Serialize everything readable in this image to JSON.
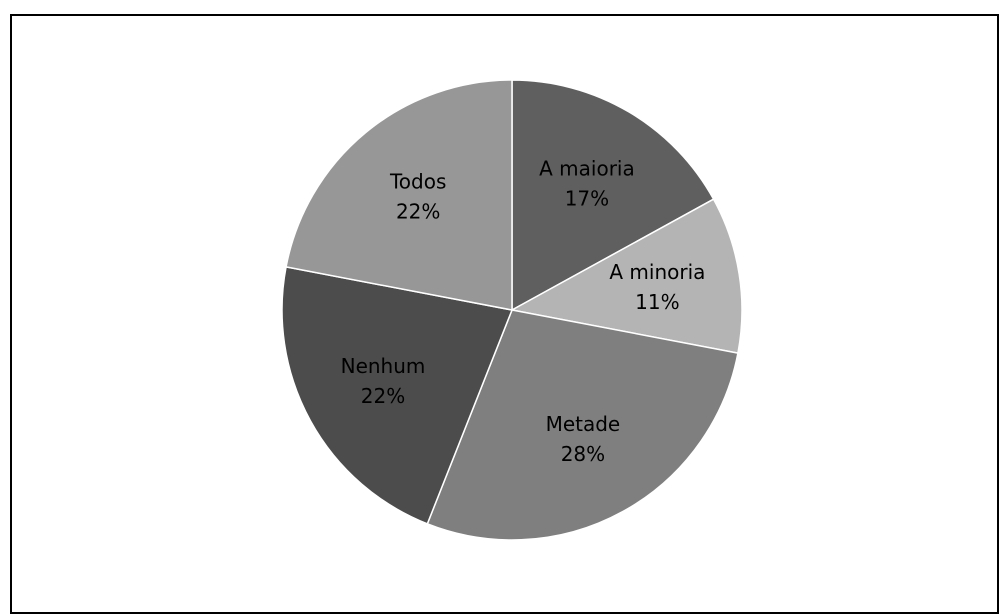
{
  "chart_data": {
    "type": "pie",
    "title": "",
    "start": "top",
    "direction": "clockwise",
    "slices": [
      {
        "label": "A maioria",
        "value": 17,
        "value_label": "17%",
        "color": "#5f5f5f"
      },
      {
        "label": "A minoria",
        "value": 11,
        "value_label": "11%",
        "color": "#b4b4b4"
      },
      {
        "label": "Metade",
        "value": 28,
        "value_label": "28%",
        "color": "#7f7f7f"
      },
      {
        "label": "Nenhum",
        "value": 22,
        "value_label": "22%",
        "color": "#4c4c4c"
      },
      {
        "label": "Todos",
        "value": 22,
        "value_label": "22%",
        "color": "#979797"
      }
    ]
  }
}
